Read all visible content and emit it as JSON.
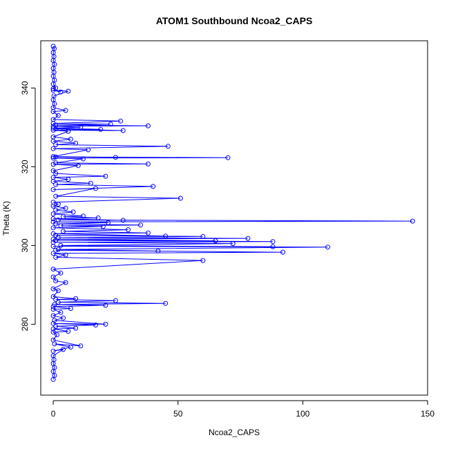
{
  "chart_data": {
    "type": "scatter",
    "title": "ATOM1 Southbound Ncoa2_CAPS",
    "xlabel": "Ncoa2_CAPS",
    "ylabel": "Theta (K)",
    "xlim": [
      -5,
      150
    ],
    "ylim": [
      262,
      352
    ],
    "xticks": [
      0,
      50,
      100,
      150
    ],
    "yticks": [
      280,
      300,
      320,
      340
    ],
    "grid": false,
    "legend": "none",
    "marker": "open-circle",
    "connected": true,
    "color": "#0000ff",
    "series": [
      {
        "points": [
          [
            0,
            266
          ],
          [
            0.5,
            267
          ],
          [
            0,
            268
          ],
          [
            0.5,
            269
          ],
          [
            0,
            270
          ],
          [
            0.3,
            271
          ],
          [
            0,
            272
          ],
          [
            4,
            273.6
          ],
          [
            0,
            273.2
          ],
          [
            7,
            274.2
          ],
          [
            0.5,
            275
          ],
          [
            11,
            274.5
          ],
          [
            0,
            276
          ],
          [
            1.5,
            277.3
          ],
          [
            0,
            278
          ],
          [
            6,
            278.2
          ],
          [
            0,
            278.8
          ],
          [
            9,
            279
          ],
          [
            1,
            279.5
          ],
          [
            17,
            279.8
          ],
          [
            0,
            280.2
          ],
          [
            21,
            280
          ],
          [
            0.5,
            281
          ],
          [
            4,
            281.6
          ],
          [
            0,
            282.2
          ],
          [
            3,
            283
          ],
          [
            0,
            283.8
          ],
          [
            7,
            284
          ],
          [
            0,
            284.5
          ],
          [
            21,
            284.8
          ],
          [
            0.5,
            285
          ],
          [
            45,
            285.3
          ],
          [
            2,
            285.6
          ],
          [
            25,
            286
          ],
          [
            1,
            286.3
          ],
          [
            9,
            286.5
          ],
          [
            0,
            287
          ],
          [
            2,
            288.5
          ],
          [
            0,
            289
          ],
          [
            5,
            290.6
          ],
          [
            1,
            291
          ],
          [
            0,
            292
          ],
          [
            3,
            293
          ],
          [
            0,
            294
          ],
          [
            60,
            296.2
          ],
          [
            1,
            297
          ],
          [
            5,
            297.6
          ],
          [
            0,
            298
          ],
          [
            92,
            298.3
          ],
          [
            1,
            298.8
          ],
          [
            42,
            298.6
          ],
          [
            2,
            299
          ],
          [
            110,
            299.6
          ],
          [
            0,
            299.8
          ],
          [
            88,
            299.7
          ],
          [
            3,
            300
          ],
          [
            72,
            300.5
          ],
          [
            0,
            300.8
          ],
          [
            88,
            301
          ],
          [
            1,
            301.3
          ],
          [
            65,
            301.2
          ],
          [
            0,
            301.6
          ],
          [
            78,
            301.8
          ],
          [
            2,
            302
          ],
          [
            60,
            302.3
          ],
          [
            1,
            302.6
          ],
          [
            45,
            302.4
          ],
          [
            0,
            303
          ],
          [
            38,
            303.2
          ],
          [
            4,
            303.6
          ],
          [
            30,
            304
          ],
          [
            0,
            304.5
          ],
          [
            20,
            304.8
          ],
          [
            3,
            305
          ],
          [
            35,
            305.2
          ],
          [
            1,
            305.5
          ],
          [
            22,
            305.8
          ],
          [
            0,
            306
          ],
          [
            144,
            306.2
          ],
          [
            2,
            306.5
          ],
          [
            28,
            306.4
          ],
          [
            0,
            306.8
          ],
          [
            18,
            307
          ],
          [
            4,
            307.3
          ],
          [
            12,
            307.5
          ],
          [
            0,
            308
          ],
          [
            8,
            308.5
          ],
          [
            1,
            309
          ],
          [
            5,
            309.5
          ],
          [
            0,
            310
          ],
          [
            2,
            310.5
          ],
          [
            0,
            311
          ],
          [
            51,
            312
          ],
          [
            1,
            312.5
          ],
          [
            17,
            314.5
          ],
          [
            0,
            314.2
          ],
          [
            40,
            315
          ],
          [
            1,
            315.5
          ],
          [
            15,
            315.8
          ],
          [
            0,
            316.3
          ],
          [
            6,
            316.8
          ],
          [
            0,
            317.3
          ],
          [
            21,
            317.6
          ],
          [
            1,
            318.3
          ],
          [
            0,
            319
          ],
          [
            10,
            320.3
          ],
          [
            0,
            320.6
          ],
          [
            38,
            320.7
          ],
          [
            1,
            321
          ],
          [
            12,
            322
          ],
          [
            0,
            322.2
          ],
          [
            70,
            322.3
          ],
          [
            1,
            322.5
          ],
          [
            25,
            322.4
          ],
          [
            0,
            322.6
          ],
          [
            14,
            324.3
          ],
          [
            0,
            324.6
          ],
          [
            46,
            325.2
          ],
          [
            1,
            325.6
          ],
          [
            9,
            326
          ],
          [
            0,
            326.5
          ],
          [
            7,
            327
          ],
          [
            0,
            327.6
          ],
          [
            6,
            329
          ],
          [
            0,
            329.3
          ],
          [
            28,
            329.2
          ],
          [
            1,
            329.6
          ],
          [
            19,
            329.5
          ],
          [
            0,
            329.8
          ],
          [
            11,
            330
          ],
          [
            0,
            330.3
          ],
          [
            38,
            330.4
          ],
          [
            1,
            330.6
          ],
          [
            23,
            330.8
          ],
          [
            0,
            331
          ],
          [
            27,
            331.6
          ],
          [
            0,
            332
          ],
          [
            2,
            333
          ],
          [
            0,
            334
          ],
          [
            5,
            334.3
          ],
          [
            0,
            335
          ],
          [
            0.5,
            336
          ],
          [
            0,
            337
          ],
          [
            0.3,
            338
          ],
          [
            6,
            339.2
          ],
          [
            0,
            339.4
          ],
          [
            3,
            339
          ],
          [
            0,
            339.8
          ],
          [
            1,
            340
          ],
          [
            0,
            341
          ],
          [
            0.5,
            342
          ],
          [
            0,
            343
          ],
          [
            0.3,
            344
          ],
          [
            0,
            345
          ],
          [
            0.5,
            346
          ],
          [
            0,
            347
          ],
          [
            0.3,
            348
          ],
          [
            0,
            349
          ],
          [
            0.4,
            350
          ],
          [
            0,
            350.6
          ]
        ]
      }
    ]
  }
}
